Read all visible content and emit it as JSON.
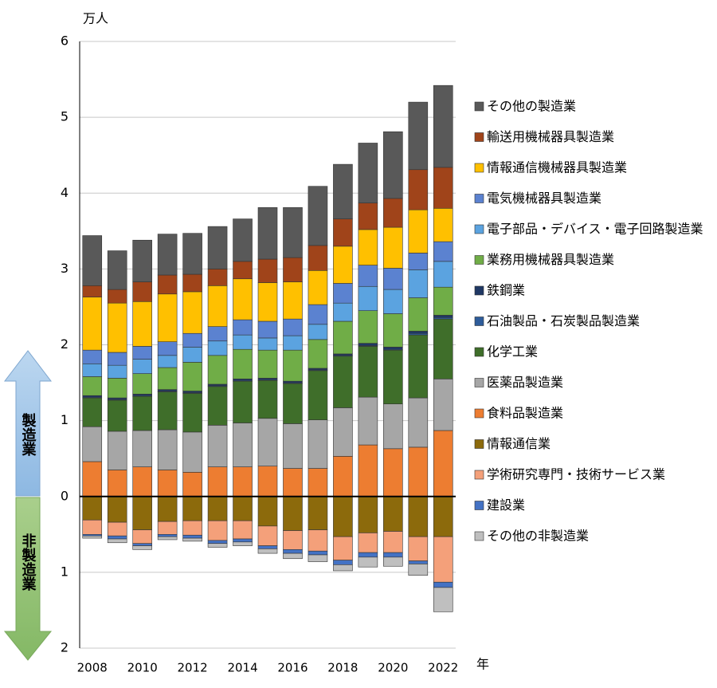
{
  "chart_data": {
    "type": "stacked-bar",
    "y_unit": "万人",
    "x_unit": "年",
    "annotations": [
      "製造業",
      "非製造業"
    ],
    "categories": [
      "2008",
      null,
      "2010",
      null,
      "2012",
      null,
      "2014",
      null,
      "2016",
      null,
      "2018",
      null,
      "2020",
      null,
      "2022"
    ],
    "ylim": [
      -2,
      6
    ],
    "yticks": [
      {
        "value": -2,
        "label": "2"
      },
      {
        "value": -1,
        "label": "1"
      },
      0,
      1,
      2,
      3,
      4,
      5,
      6
    ],
    "grid": true,
    "series": [
      {
        "name": "食料品製造業",
        "color": "#ed7d31",
        "values": [
          0.46,
          0.35,
          0.39,
          0.35,
          0.32,
          0.39,
          0.39,
          0.4,
          0.37,
          0.37,
          0.53,
          0.68,
          0.63,
          0.65,
          0.87
        ]
      },
      {
        "name": "医薬品製造業",
        "color": "#a6a6a6",
        "values": [
          0.46,
          0.51,
          0.48,
          0.53,
          0.53,
          0.55,
          0.58,
          0.63,
          0.59,
          0.64,
          0.64,
          0.63,
          0.59,
          0.65,
          0.68
        ]
      },
      {
        "name": "化学工業",
        "color": "#3f6e2a",
        "values": [
          0.38,
          0.41,
          0.45,
          0.5,
          0.51,
          0.51,
          0.55,
          0.5,
          0.53,
          0.65,
          0.68,
          0.67,
          0.71,
          0.83,
          0.79
        ]
      },
      {
        "name": "石油製品・石炭製品製造業",
        "color": "#2e5c9a",
        "values": [
          0.01,
          0.01,
          0.01,
          0.01,
          0.01,
          0.01,
          0.01,
          0.01,
          0.01,
          0.01,
          0.01,
          0.01,
          0.01,
          0.02,
          0.02
        ]
      },
      {
        "name": "鉄鋼業",
        "color": "#1f3864",
        "values": [
          0.02,
          0.02,
          0.02,
          0.02,
          0.02,
          0.02,
          0.02,
          0.02,
          0.02,
          0.02,
          0.02,
          0.03,
          0.03,
          0.03,
          0.03
        ]
      },
      {
        "name": "業務用機械器具製造業",
        "color": "#70ad47",
        "values": [
          0.25,
          0.26,
          0.27,
          0.29,
          0.38,
          0.38,
          0.39,
          0.37,
          0.41,
          0.38,
          0.43,
          0.43,
          0.44,
          0.44,
          0.37
        ]
      },
      {
        "name": "電子部品・デバイス・電子回路製造業",
        "color": "#5ba3e0",
        "values": [
          0.17,
          0.17,
          0.19,
          0.16,
          0.2,
          0.19,
          0.19,
          0.16,
          0.19,
          0.2,
          0.24,
          0.32,
          0.32,
          0.37,
          0.34
        ]
      },
      {
        "name": "電気機械器具製造業",
        "color": "#5b82d0",
        "values": [
          0.18,
          0.17,
          0.17,
          0.18,
          0.18,
          0.19,
          0.2,
          0.22,
          0.22,
          0.26,
          0.26,
          0.28,
          0.28,
          0.22,
          0.26
        ]
      },
      {
        "name": "情報通信機械器具製造業",
        "color": "#ffc000",
        "values": [
          0.7,
          0.65,
          0.59,
          0.63,
          0.55,
          0.54,
          0.54,
          0.51,
          0.49,
          0.45,
          0.49,
          0.47,
          0.54,
          0.57,
          0.44
        ]
      },
      {
        "name": "輸送用機械器具製造業",
        "color": "#a0441a",
        "values": [
          0.15,
          0.18,
          0.26,
          0.25,
          0.23,
          0.22,
          0.23,
          0.31,
          0.32,
          0.33,
          0.36,
          0.35,
          0.38,
          0.53,
          0.54
        ]
      },
      {
        "name": "その他の製造業",
        "color": "#595959",
        "values": [
          0.66,
          0.51,
          0.55,
          0.54,
          0.54,
          0.56,
          0.56,
          0.68,
          0.66,
          0.78,
          0.72,
          0.79,
          0.88,
          0.89,
          1.08
        ]
      },
      {
        "name": "情報通信業",
        "color": "#8c6a0c",
        "values": [
          -0.31,
          -0.34,
          -0.44,
          -0.33,
          -0.32,
          -0.32,
          -0.32,
          -0.39,
          -0.45,
          -0.44,
          -0.53,
          -0.48,
          -0.46,
          -0.53,
          -0.53
        ]
      },
      {
        "name": "学術研究専門・技術サービス業",
        "color": "#f4a07a",
        "values": [
          -0.19,
          -0.18,
          -0.18,
          -0.17,
          -0.19,
          -0.26,
          -0.24,
          -0.26,
          -0.25,
          -0.28,
          -0.31,
          -0.26,
          -0.28,
          -0.32,
          -0.6
        ]
      },
      {
        "name": "建設業",
        "color": "#4472c4",
        "values": [
          -0.02,
          -0.04,
          -0.03,
          -0.03,
          -0.04,
          -0.04,
          -0.04,
          -0.04,
          -0.05,
          -0.05,
          -0.06,
          -0.06,
          -0.06,
          -0.04,
          -0.07
        ]
      },
      {
        "name": "その他の非製造業",
        "color": "#bfbfbf",
        "values": [
          -0.03,
          -0.05,
          -0.05,
          -0.04,
          -0.04,
          -0.05,
          -0.05,
          -0.06,
          -0.07,
          -0.09,
          -0.08,
          -0.13,
          -0.12,
          -0.15,
          -0.32
        ]
      }
    ]
  }
}
